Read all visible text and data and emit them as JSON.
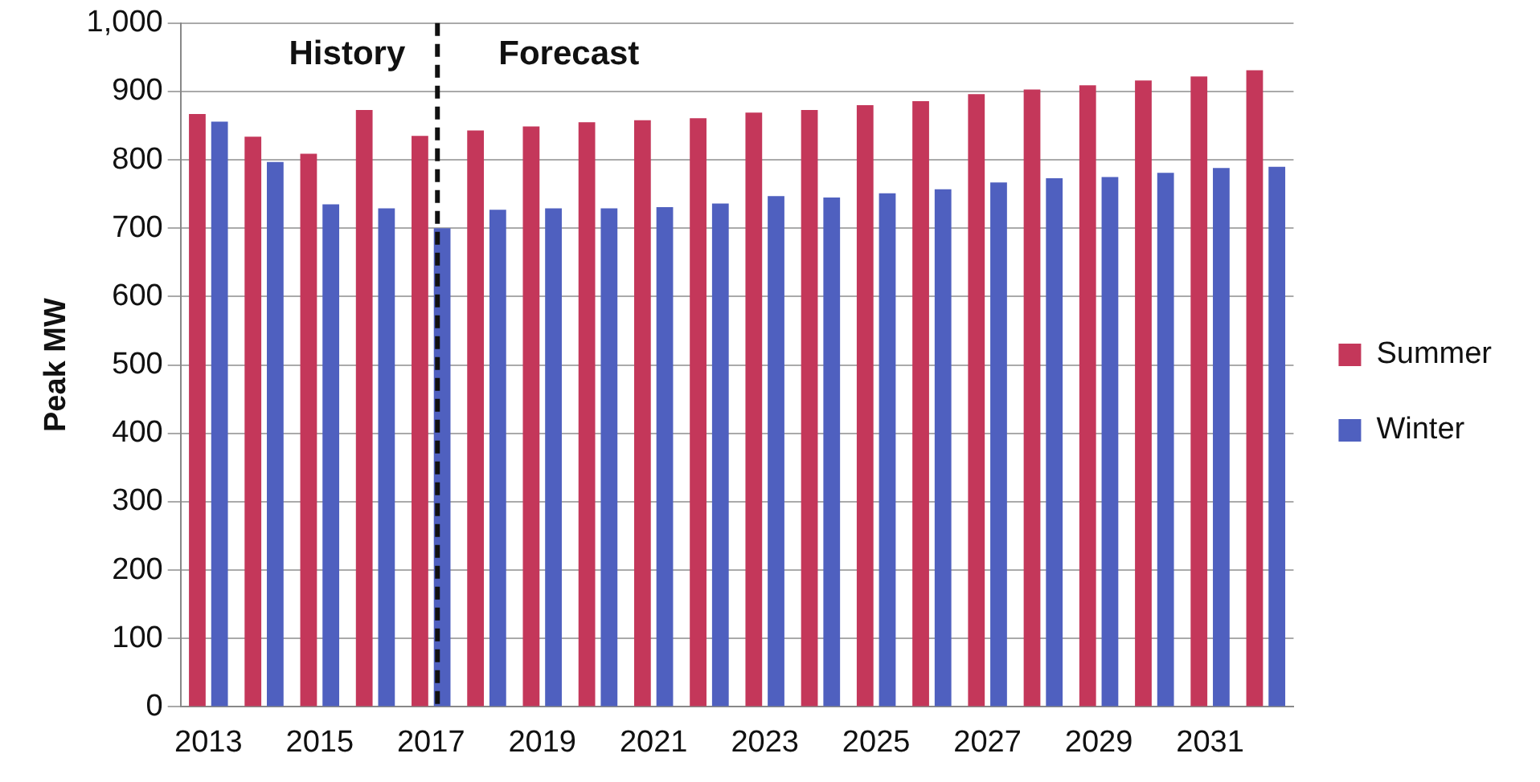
{
  "chart_data": {
    "type": "bar",
    "ylabel": "Peak MW",
    "categories": [
      "2013",
      null,
      "2015",
      null,
      "2017",
      null,
      "2019",
      null,
      "2021",
      null,
      "2023",
      null,
      "2025",
      null,
      "2027",
      null,
      "2029",
      null,
      "2031",
      null
    ],
    "series": [
      {
        "name": "Summer",
        "color": "#c4375a",
        "values": [
          867,
          834,
          809,
          873,
          835,
          843,
          849,
          855,
          858,
          861,
          869,
          873,
          880,
          886,
          896,
          903,
          909,
          916,
          922,
          931
        ]
      },
      {
        "name": "Winter",
        "color": "#4f60bf",
        "values": [
          856,
          797,
          735,
          729,
          700,
          727,
          729,
          729,
          731,
          736,
          747,
          745,
          751,
          757,
          767,
          773,
          775,
          781,
          788,
          790
        ]
      }
    ],
    "ylim": [
      0,
      1000
    ],
    "yticks": [
      0,
      100,
      200,
      300,
      400,
      500,
      600,
      700,
      800,
      900,
      {
        "value": 1000,
        "label": "1,000"
      }
    ],
    "grid": "y",
    "legend": "right",
    "ref_lines": [
      {
        "axis": "x",
        "value": "2017",
        "line_style": "dashed",
        "color": "#111111"
      }
    ],
    "annotations": [
      "History",
      "Forecast"
    ]
  }
}
